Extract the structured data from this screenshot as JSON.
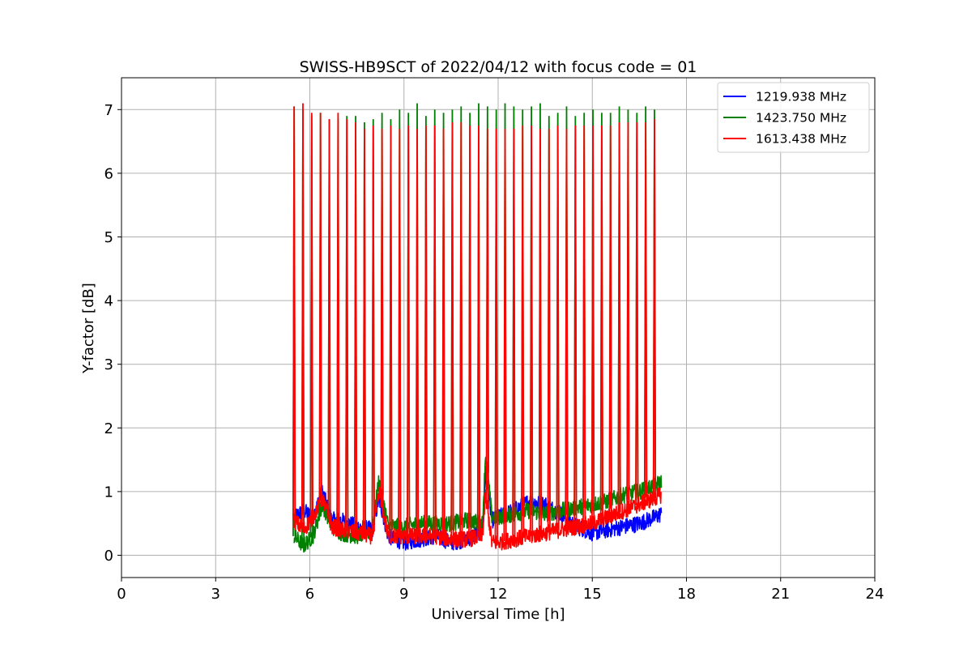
{
  "chart_data": {
    "type": "line",
    "title": "SWISS-HB9SCT of 2022/04/12 with focus code = 01",
    "xlabel": "Universal Time [h]",
    "ylabel": "Y-factor [dB]",
    "xlim": [
      0,
      24
    ],
    "ylim": [
      -0.35,
      7.5
    ],
    "xticks": [
      0,
      3,
      6,
      9,
      12,
      15,
      18,
      21,
      24
    ],
    "yticks": [
      0,
      1,
      2,
      3,
      4,
      5,
      6,
      7
    ],
    "grid": true,
    "legend_position": "top-right",
    "calibration_spike_times": [
      5.5,
      5.78,
      6.06,
      6.34,
      6.62,
      6.9,
      7.18,
      7.46,
      7.74,
      8.02,
      8.3,
      8.58,
      8.86,
      9.14,
      9.42,
      9.7,
      9.98,
      10.26,
      10.54,
      10.82,
      11.1,
      11.38,
      11.66,
      11.94,
      12.22,
      12.5,
      12.78,
      13.06,
      13.34,
      13.62,
      13.9,
      14.18,
      14.46,
      14.74,
      15.02,
      15.3,
      15.58,
      15.86,
      16.14,
      16.42,
      16.7,
      16.98
    ],
    "series": [
      {
        "name": "1219.938 MHz",
        "color": "#0000ff",
        "baseline": {
          "x": [
            5.5,
            5.8,
            6.1,
            6.4,
            6.7,
            7.0,
            7.5,
            8.0,
            8.2,
            8.5,
            9.0,
            9.5,
            10.0,
            10.5,
            11.0,
            11.5,
            11.6,
            11.8,
            12.0,
            12.5,
            13.0,
            13.5,
            14.0,
            14.5,
            15.0,
            15.5,
            16.0,
            16.5,
            17.0,
            17.2
          ],
          "y": [
            0.6,
            0.7,
            0.6,
            1.0,
            0.55,
            0.55,
            0.45,
            0.4,
            0.9,
            0.3,
            0.2,
            0.25,
            0.3,
            0.2,
            0.25,
            0.4,
            1.3,
            0.55,
            0.6,
            0.7,
            0.85,
            0.8,
            0.65,
            0.45,
            0.35,
            0.4,
            0.45,
            0.5,
            0.6,
            0.65
          ]
        },
        "spike_peaks": []
      },
      {
        "name": "1423.750 MHz",
        "color": "#008000",
        "baseline": {
          "x": [
            5.5,
            5.8,
            6.1,
            6.4,
            6.7,
            7.0,
            7.5,
            8.0,
            8.2,
            8.5,
            9.0,
            9.5,
            10.0,
            10.5,
            11.0,
            11.5,
            11.6,
            11.8,
            12.0,
            12.5,
            13.0,
            13.5,
            14.0,
            14.5,
            15.0,
            15.5,
            16.0,
            16.5,
            17.0,
            17.2
          ],
          "y": [
            0.3,
            0.15,
            0.3,
            0.8,
            0.45,
            0.35,
            0.3,
            0.4,
            1.2,
            0.45,
            0.45,
            0.5,
            0.5,
            0.5,
            0.55,
            0.5,
            1.6,
            0.6,
            0.6,
            0.65,
            0.7,
            0.65,
            0.7,
            0.75,
            0.8,
            0.85,
            0.95,
            1.0,
            1.1,
            1.15
          ]
        },
        "spike_peaks": [
          7.05,
          7.0,
          6.9,
          6.95,
          6.85,
          6.85,
          6.9,
          6.9,
          6.8,
          6.85,
          6.95,
          6.85,
          7.0,
          6.95,
          7.1,
          6.9,
          7.0,
          6.95,
          7.0,
          7.05,
          6.95,
          7.1,
          7.05,
          7.0,
          7.1,
          7.05,
          7.0,
          7.05,
          7.1,
          6.9,
          6.95,
          7.05,
          6.9,
          6.95,
          7.0,
          6.95,
          6.95,
          7.05,
          7.0,
          6.95,
          7.05,
          7.0
        ]
      },
      {
        "name": "1613.438 MHz",
        "color": "#ff0000",
        "baseline": {
          "x": [
            5.5,
            5.8,
            6.1,
            6.4,
            6.7,
            7.0,
            7.5,
            8.0,
            8.2,
            8.5,
            9.0,
            9.5,
            10.0,
            10.5,
            11.0,
            11.5,
            11.6,
            11.8,
            12.0,
            12.5,
            13.0,
            13.5,
            14.0,
            14.5,
            15.0,
            15.5,
            16.0,
            16.5,
            17.0,
            17.2
          ],
          "y": [
            0.55,
            0.4,
            0.6,
            0.9,
            0.45,
            0.4,
            0.35,
            0.3,
            1.0,
            0.3,
            0.3,
            0.3,
            0.3,
            0.25,
            0.25,
            0.3,
            0.95,
            0.2,
            0.2,
            0.25,
            0.3,
            0.35,
            0.4,
            0.45,
            0.5,
            0.6,
            0.7,
            0.8,
            0.9,
            0.95
          ]
        },
        "spike_peaks": [
          7.05,
          7.1,
          6.95,
          6.95,
          6.85,
          6.95,
          6.85,
          6.8,
          6.7,
          6.75,
          6.7,
          6.75,
          6.7,
          6.75,
          6.7,
          6.75,
          6.75,
          6.7,
          6.8,
          6.8,
          6.75,
          6.75,
          6.7,
          6.7,
          6.7,
          6.7,
          6.75,
          6.75,
          6.7,
          6.7,
          6.75,
          6.7,
          6.75,
          6.75,
          6.75,
          6.75,
          6.75,
          6.8,
          6.8,
          6.8,
          6.8,
          6.85
        ]
      }
    ]
  }
}
